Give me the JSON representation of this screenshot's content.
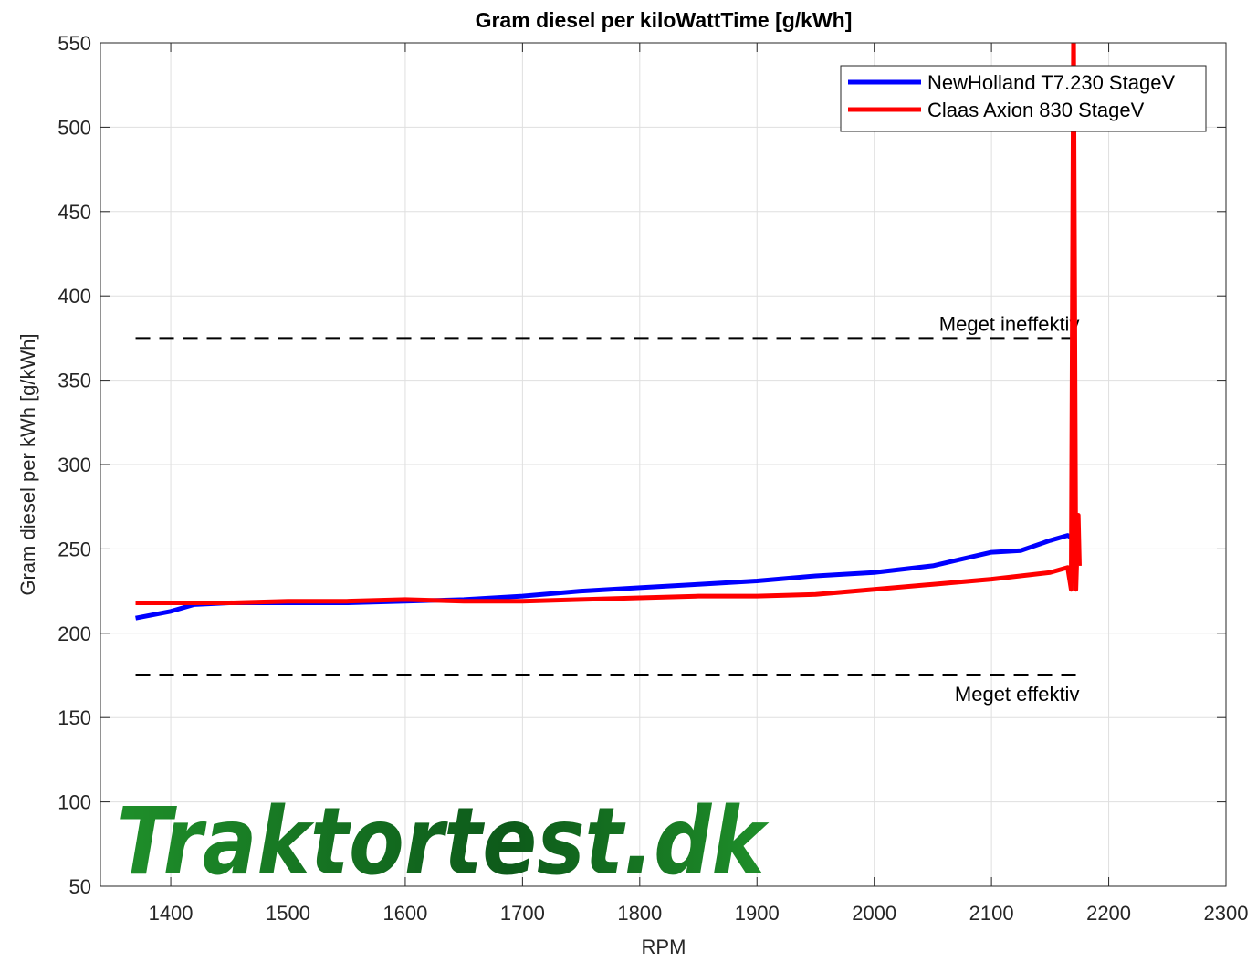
{
  "chart_data": {
    "type": "line",
    "title": "Gram diesel per kiloWattTime [g/kWh]",
    "xlabel": "RPM",
    "ylabel": "Gram diesel per kWh [g/kWh]",
    "watermark": "Traktortest.dk",
    "xlim": [
      1340,
      2300
    ],
    "ylim": [
      50,
      550
    ],
    "xticks": [
      1400,
      1500,
      1600,
      1700,
      1800,
      1900,
      2000,
      2100,
      2200,
      2300
    ],
    "yticks": [
      50,
      100,
      150,
      200,
      250,
      300,
      350,
      400,
      450,
      500,
      550
    ],
    "grid": true,
    "legend": "upper right",
    "series": [
      {
        "name": "NewHolland T7.230 StageV",
        "color": "#0000ff",
        "x": [
          1370,
          1400,
          1420,
          1450,
          1500,
          1550,
          1600,
          1650,
          1700,
          1750,
          1800,
          1850,
          1900,
          1950,
          2000,
          2050,
          2075,
          2100,
          2125,
          2150,
          2165,
          2175
        ],
        "values": [
          209,
          213,
          217,
          218,
          218,
          218,
          219,
          220,
          222,
          225,
          227,
          229,
          231,
          234,
          236,
          240,
          244,
          248,
          249,
          255,
          258,
          254
        ]
      },
      {
        "name": "Claas Axion 830 StageV",
        "color": "#ff0000",
        "x": [
          1370,
          1400,
          1450,
          1500,
          1550,
          1600,
          1650,
          1700,
          1750,
          1800,
          1850,
          1900,
          1950,
          2000,
          2050,
          2100,
          2150,
          2165,
          2168,
          2170,
          2172,
          2174,
          2175
        ],
        "values": [
          218,
          218,
          218,
          219,
          219,
          220,
          219,
          219,
          220,
          221,
          222,
          222,
          223,
          226,
          229,
          232,
          236,
          239,
          226,
          560,
          226,
          270,
          240
        ]
      }
    ],
    "reference_lines": [
      {
        "value": 375,
        "x": [
          1370,
          2175
        ],
        "label": "Meget ineffektiv"
      },
      {
        "value": 175,
        "x": [
          1370,
          2175
        ],
        "label": "Meget effektiv"
      }
    ]
  }
}
